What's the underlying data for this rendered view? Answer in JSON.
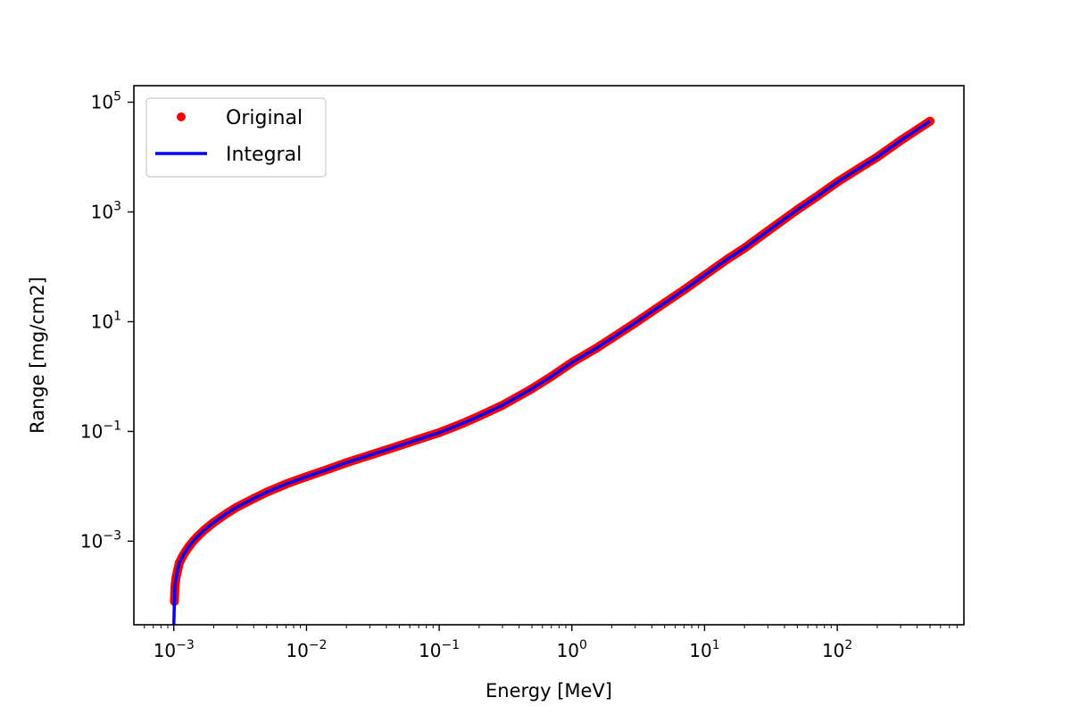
{
  "chart_data": {
    "type": "line",
    "title": "",
    "xlabel": "Energy [MeV]",
    "ylabel": "Range [mg/cm2]",
    "xscale": "log",
    "yscale": "log",
    "xlim": [
      0.0005,
      900
    ],
    "ylim": [
      3e-05,
      200000
    ],
    "grid": false,
    "legend_position": "top-left",
    "x_ticks": [
      {
        "value": 0.001,
        "base": "10",
        "exp": "−3"
      },
      {
        "value": 0.01,
        "base": "10",
        "exp": "−2"
      },
      {
        "value": 0.1,
        "base": "10",
        "exp": "−1"
      },
      {
        "value": 1,
        "base": "10",
        "exp": "0"
      },
      {
        "value": 10,
        "base": "10",
        "exp": "1"
      },
      {
        "value": 100,
        "base": "10",
        "exp": "2"
      }
    ],
    "y_ticks": [
      {
        "value": 0.001,
        "base": "10",
        "exp": "−3"
      },
      {
        "value": 0.1,
        "base": "10",
        "exp": "−1"
      },
      {
        "value": 10,
        "base": "10",
        "exp": "1"
      },
      {
        "value": 1000,
        "base": "10",
        "exp": "3"
      },
      {
        "value": 100000,
        "base": "10",
        "exp": "5"
      }
    ],
    "series": [
      {
        "name": "Original",
        "style": "markers",
        "color": "#ff0000",
        "x": [
          0.00101,
          0.00102,
          0.00104,
          0.00107,
          0.0011,
          0.00115,
          0.0012,
          0.0013,
          0.0014,
          0.0015,
          0.0017,
          0.002,
          0.0025,
          0.003,
          0.004,
          0.005,
          0.007,
          0.01,
          0.015,
          0.02,
          0.03,
          0.05,
          0.07,
          0.1,
          0.15,
          0.2,
          0.3,
          0.5,
          0.7,
          1,
          1.5,
          2,
          3,
          5,
          7,
          10,
          15,
          20,
          30,
          50,
          70,
          100,
          150,
          200,
          300,
          500
        ],
        "y": [
          8e-05,
          0.00015,
          0.00022,
          0.0003,
          0.0004,
          0.0005,
          0.0006,
          0.0008,
          0.001,
          0.0012,
          0.0016,
          0.0022,
          0.0032,
          0.0042,
          0.006,
          0.0078,
          0.011,
          0.015,
          0.021,
          0.027,
          0.037,
          0.055,
          0.072,
          0.095,
          0.14,
          0.19,
          0.3,
          0.6,
          1.0,
          1.8,
          3.2,
          5.0,
          9.5,
          22,
          38,
          70,
          140,
          220,
          450,
          1100,
          1900,
          3500,
          6500,
          10000,
          20000,
          45000
        ]
      },
      {
        "name": "Integral",
        "style": "line",
        "color": "#0000ff",
        "x": [
          0.001,
          0.00101,
          0.00102,
          0.00104,
          0.00107,
          0.0011,
          0.00115,
          0.0012,
          0.0013,
          0.0014,
          0.0015,
          0.0017,
          0.002,
          0.0025,
          0.003,
          0.004,
          0.005,
          0.007,
          0.01,
          0.015,
          0.02,
          0.03,
          0.05,
          0.07,
          0.1,
          0.15,
          0.2,
          0.3,
          0.5,
          0.7,
          1,
          1.5,
          2,
          3,
          5,
          7,
          10,
          15,
          20,
          30,
          50,
          70,
          100,
          150,
          200,
          300,
          500
        ],
        "y": [
          3e-05,
          8e-05,
          0.00015,
          0.00022,
          0.0003,
          0.0004,
          0.0005,
          0.0006,
          0.0008,
          0.001,
          0.0012,
          0.0016,
          0.0022,
          0.0032,
          0.0042,
          0.006,
          0.0078,
          0.011,
          0.015,
          0.021,
          0.027,
          0.037,
          0.055,
          0.072,
          0.095,
          0.14,
          0.19,
          0.3,
          0.6,
          1.0,
          1.8,
          3.2,
          5.0,
          9.5,
          22,
          38,
          70,
          140,
          220,
          450,
          1100,
          1900,
          3500,
          6500,
          10000,
          20000,
          45000
        ]
      }
    ]
  }
}
